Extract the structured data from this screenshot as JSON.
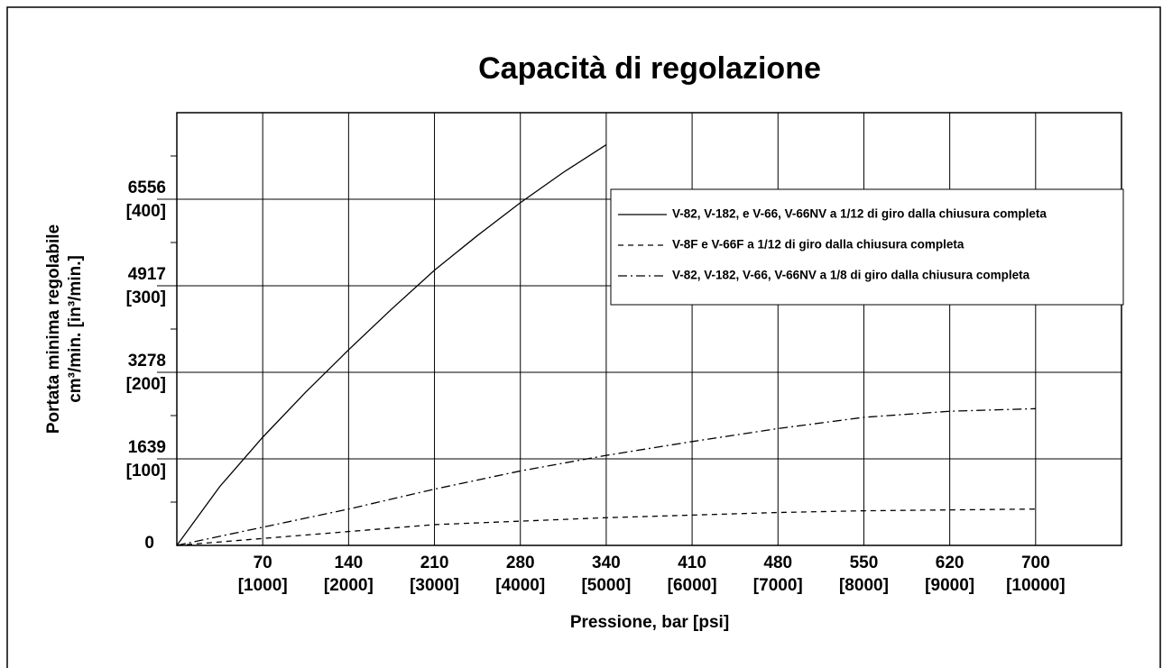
{
  "chart_data": {
    "type": "line",
    "title": "Capacità di regolazione",
    "xlabel": "Pressione, bar [psi]",
    "ylabel": [
      "Portata minima regolabile",
      "cm³/min. [in³/min.]"
    ],
    "xlim": [
      0,
      11000
    ],
    "xticks": [
      {
        "value": 1000,
        "label": "[1000]"
      },
      {
        "value": 2000,
        "label": "[2000]"
      },
      {
        "value": 3000,
        "label": "[3000]"
      },
      {
        "value": 4000,
        "label": "[4000]"
      },
      {
        "value": 5000,
        "label": "[5000]"
      },
      {
        "value": 6000,
        "label": "[6000]"
      },
      {
        "value": 7000,
        "label": "[7000]"
      },
      {
        "value": 8000,
        "label": "[8000]"
      },
      {
        "value": 9000,
        "label": "[9000]"
      },
      {
        "value": 10000,
        "label": "[10000]"
      }
    ],
    "xtick_bar_labels": [
      70,
      140,
      210,
      280,
      340,
      410,
      480,
      550,
      620,
      700
    ],
    "ylim": [
      0,
      500
    ],
    "yticks": [
      0,
      {
        "value": 100,
        "label": "[100]"
      },
      {
        "value": 200,
        "label": "[200]"
      },
      {
        "value": 300,
        "label": "[300]"
      },
      {
        "value": 400,
        "label": "[400]"
      }
    ],
    "ytick_cm_labels": [
      null,
      1639,
      3278,
      4917,
      6556
    ],
    "yminor_ticks": [
      50,
      150,
      250,
      350,
      450
    ],
    "grid": true,
    "color": "#000000",
    "series": [
      {
        "name": "V-82, V-182, e V-66, V-66NV a 1/12 di giro dalla chiusura completa",
        "style": "solid",
        "x": [
          0,
          500,
          1000,
          1500,
          2000,
          2500,
          3000,
          3500,
          4000,
          4500,
          5000
        ],
        "values": [
          0,
          68,
          125,
          177,
          226,
          273,
          318,
          358,
          396,
          431,
          463
        ]
      },
      {
        "name": "V-8F e V-66F a 1/12 di giro dalla chiusura completa",
        "style": "dashed",
        "x": [
          0,
          1000,
          2000,
          3000,
          4000,
          5000,
          6000,
          7000,
          8000,
          9000,
          10000
        ],
        "values": [
          0,
          8,
          16,
          24,
          28,
          32,
          35,
          38,
          40,
          41,
          42
        ]
      },
      {
        "name": "V-82, V-182, V-66, V-66NV a 1/8 di giro dalla chiusura completa",
        "style": "dashdot",
        "x": [
          0,
          1000,
          2000,
          3000,
          4000,
          5000,
          6000,
          7000,
          8000,
          9000,
          10000
        ],
        "values": [
          0,
          21,
          42,
          65,
          86,
          104,
          120,
          135,
          148,
          155,
          158
        ]
      }
    ]
  }
}
